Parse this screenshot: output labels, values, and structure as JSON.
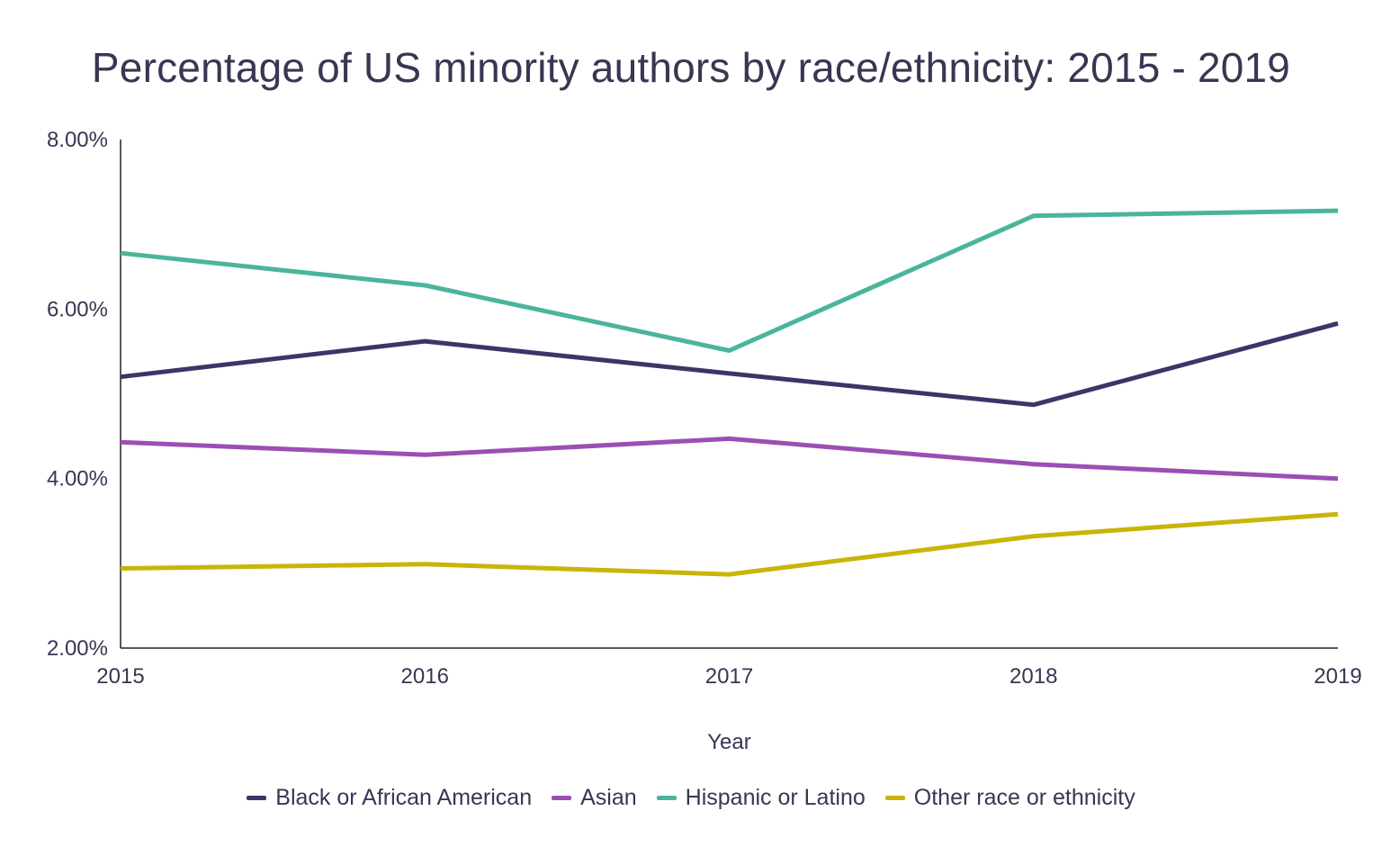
{
  "chart_data": {
    "type": "line",
    "title": "Percentage of US minority authors by race/ethnicity: 2015 - 2019",
    "xlabel": "Year",
    "ylabel": "",
    "categories": [
      "2015",
      "2016",
      "2017",
      "2018",
      "2019"
    ],
    "ylim": [
      2,
      8
    ],
    "yticks": [
      {
        "value": 2,
        "label": "2.00%"
      },
      {
        "value": 4,
        "label": "4.00%"
      },
      {
        "value": 6,
        "label": "6.00%"
      },
      {
        "value": 8,
        "label": "8.00%"
      }
    ],
    "grid": false,
    "legend_position": "bottom",
    "series": [
      {
        "name": "Black or African American",
        "color": "#3e3468",
        "values": [
          5.2,
          5.62,
          5.24,
          4.87,
          5.83
        ]
      },
      {
        "name": "Asian",
        "color": "#9b4fb3",
        "values": [
          4.43,
          4.28,
          4.47,
          4.17,
          4.0
        ]
      },
      {
        "name": "Hispanic or Latino",
        "color": "#4ab59b",
        "values": [
          6.66,
          6.28,
          5.51,
          7.1,
          7.16
        ]
      },
      {
        "name": "Other race or ethnicity",
        "color": "#c9b50a",
        "values": [
          2.94,
          2.99,
          2.87,
          3.32,
          3.58
        ]
      }
    ]
  }
}
